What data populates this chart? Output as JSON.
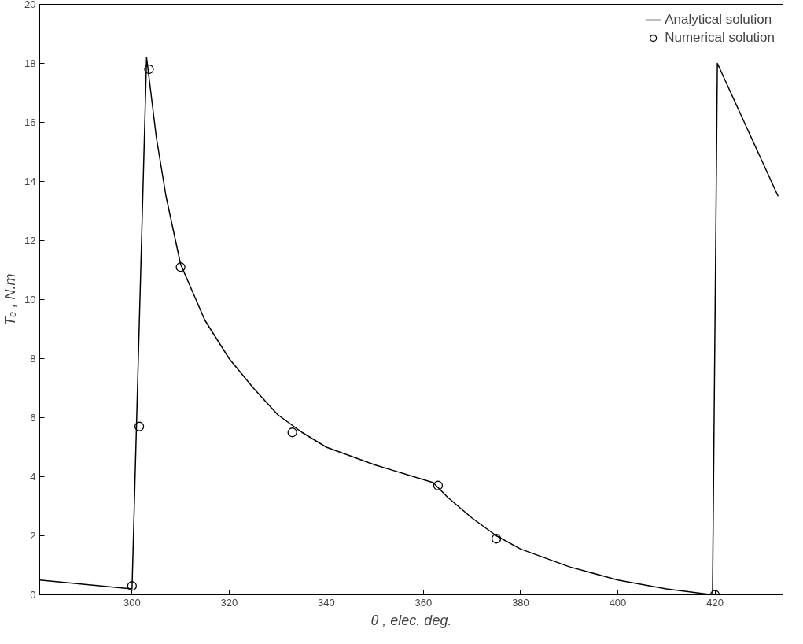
{
  "chart_data": {
    "type": "line",
    "xlabel": "θ , elec. deg.",
    "ylabel": "Tₑ , N.m",
    "xlim": [
      281,
      434
    ],
    "ylim": [
      0,
      20
    ],
    "xticks": [
      300,
      320,
      340,
      360,
      380,
      400,
      420
    ],
    "yticks": [
      0,
      2,
      4,
      6,
      8,
      10,
      12,
      14,
      16,
      18,
      20
    ],
    "grid": false,
    "legend": "top right",
    "series": [
      {
        "name": "Analytical solution",
        "color": "#000000",
        "marker": "none",
        "line_style": "solid",
        "x": [
          281,
          300,
          303,
          305,
          307,
          310,
          315,
          320,
          325,
          330,
          335,
          340,
          345,
          350,
          355,
          360,
          362,
          365,
          370,
          375,
          380,
          390,
          400,
          410,
          419.5,
          420.5,
          433
        ],
        "values": [
          0.5,
          0.2,
          18.2,
          15.5,
          13.5,
          11.2,
          9.3,
          8.0,
          7.0,
          6.1,
          5.5,
          5.0,
          4.7,
          4.4,
          4.15,
          3.9,
          3.8,
          3.3,
          2.6,
          2.0,
          1.55,
          0.95,
          0.5,
          0.2,
          0,
          18,
          13.5
        ]
      },
      {
        "name": "Numerical solution",
        "type": "scatter",
        "color": "#000000",
        "marker": "circle",
        "x": [
          300,
          301.5,
          303.5,
          310,
          333,
          363,
          375,
          420
        ],
        "values": [
          0.3,
          5.7,
          17.8,
          11.1,
          5.5,
          3.7,
          1.9,
          0
        ]
      }
    ]
  }
}
